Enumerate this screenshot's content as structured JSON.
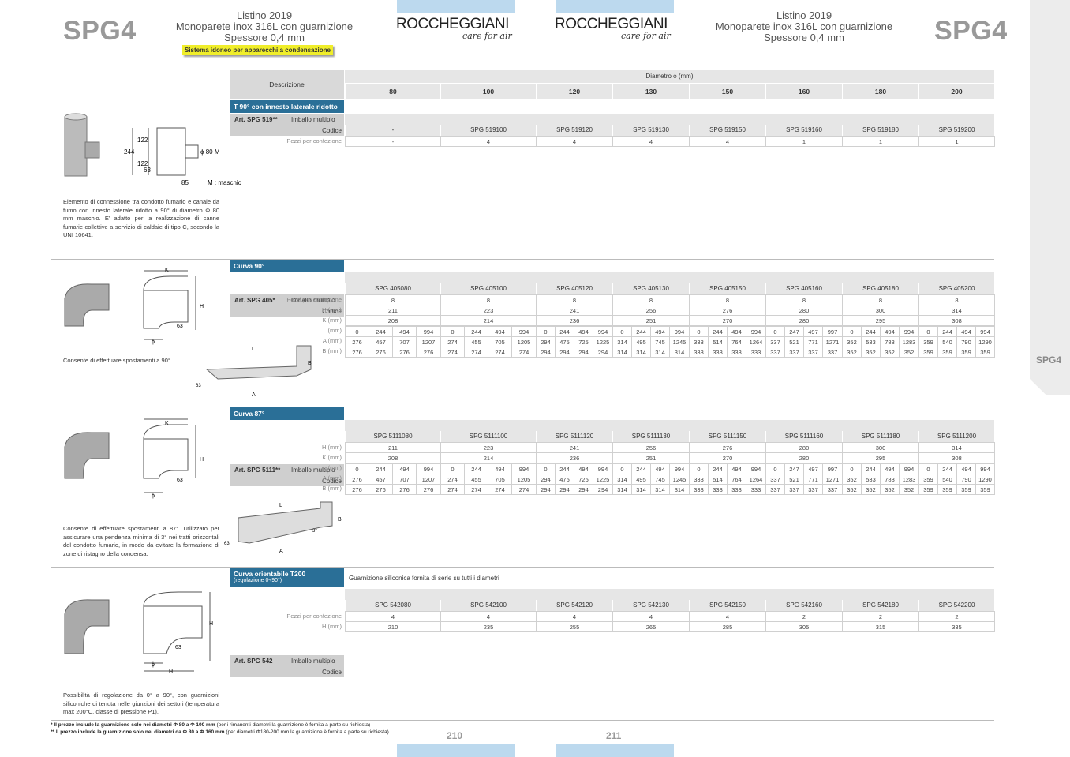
{
  "header": {
    "code_left": "SPG4",
    "code_right": "SPG4",
    "listino": "Listino 2019",
    "product": "Monoparete inox 316L con guarnizione",
    "thickness": "Spessore 0,4 mm",
    "badge": "Sistema idoneo per apparecchi a condensazione",
    "logo": "ROCCHEGGIANI",
    "logo_sub": "care for air"
  },
  "side_tab": "SPG4",
  "table_header": {
    "descrizione": "Descrizione",
    "diametro": "Diametro ϕ (mm)",
    "diameters": [
      "80",
      "100",
      "120",
      "130",
      "150",
      "160",
      "180",
      "200"
    ]
  },
  "sections": [
    {
      "title": "T 90° con innesto laterale ridotto",
      "art": "Art. SPG 519**",
      "imballo": "Imballo multiplo",
      "codice_label": "Codice",
      "codes": [
        "-",
        "SPG 519100",
        "SPG 519120",
        "SPG 519130",
        "SPG 519150",
        "SPG 519160",
        "SPG 519180",
        "SPG 519200"
      ],
      "pezzi_label": "Pezzi per confezione",
      "pezzi": [
        "-",
        "4",
        "4",
        "4",
        "4",
        "1",
        "1",
        "1"
      ],
      "description": "Elemento di connessione tra condotto fumario e canale da fumo con innesto laterale ridotto a 90° di diametro Φ 80 mm maschio. E' adatto per la realizzazione di canne fumarie collettive a servizio di caldaie di tipo C, secondo la UNI 10641.",
      "drawing": {
        "d1": "122",
        "d2": "244",
        "d3": "122",
        "d4": "63",
        "d5": "85",
        "side": "ϕ 80 M",
        "note": "M : maschio"
      }
    },
    {
      "title": "Curva 90°",
      "art": "Art. SPG 405*",
      "imballo": "Imballo multiplo",
      "codice_label": "Codice",
      "codes": [
        "SPG 405080",
        "SPG 405100",
        "SPG 405120",
        "SPG 405130",
        "SPG 405150",
        "SPG 405160",
        "SPG 405180",
        "SPG 405200"
      ],
      "pezzi_label": "Pezzi per confezione",
      "pezzi": [
        "8",
        "8",
        "8",
        "8",
        "8",
        "8",
        "8",
        "8"
      ],
      "h_label": "H (mm)",
      "h": [
        "211",
        "223",
        "241",
        "256",
        "276",
        "280",
        "300",
        "314"
      ],
      "k_label": "K (mm)",
      "k": [
        "208",
        "214",
        "236",
        "251",
        "270",
        "280",
        "295",
        "308"
      ],
      "l_label": "L (mm)",
      "l": [
        [
          "0",
          "244",
          "494",
          "994"
        ],
        [
          "0",
          "244",
          "494",
          "994"
        ],
        [
          "0",
          "244",
          "494",
          "994"
        ],
        [
          "0",
          "244",
          "494",
          "994"
        ],
        [
          "0",
          "244",
          "494",
          "994"
        ],
        [
          "0",
          "247",
          "497",
          "997"
        ],
        [
          "0",
          "244",
          "494",
          "994"
        ],
        [
          "0",
          "244",
          "494",
          "994"
        ]
      ],
      "a_label": "A (mm)",
      "a": [
        [
          "276",
          "457",
          "707",
          "1207"
        ],
        [
          "274",
          "455",
          "705",
          "1205"
        ],
        [
          "294",
          "475",
          "725",
          "1225"
        ],
        [
          "314",
          "495",
          "745",
          "1245"
        ],
        [
          "333",
          "514",
          "764",
          "1264"
        ],
        [
          "337",
          "521",
          "771",
          "1271"
        ],
        [
          "352",
          "533",
          "783",
          "1283"
        ],
        [
          "359",
          "540",
          "790",
          "1290"
        ]
      ],
      "b_label": "B (mm)",
      "b": [
        [
          "276",
          "276",
          "276",
          "276"
        ],
        [
          "274",
          "274",
          "274",
          "274"
        ],
        [
          "294",
          "294",
          "294",
          "294"
        ],
        [
          "314",
          "314",
          "314",
          "314"
        ],
        [
          "333",
          "333",
          "333",
          "333"
        ],
        [
          "337",
          "337",
          "337",
          "337"
        ],
        [
          "352",
          "352",
          "352",
          "352"
        ],
        [
          "359",
          "359",
          "359",
          "359"
        ]
      ],
      "description": "Consente di effettuare spostamenti a 90°.",
      "drawing": {
        "k": "K",
        "h": "H",
        "d": "63",
        "phi": "ϕ",
        "l": "L",
        "b": "B",
        "a": "A",
        "d2": "63"
      }
    },
    {
      "title": "Curva 87°",
      "art": "Art. SPG 5111**",
      "imballo": "Imballo multiplo",
      "codice_label": "Codice",
      "codes": [
        "SPG 5111080",
        "SPG 5111100",
        "SPG 5111120",
        "SPG 5111130",
        "SPG 5111150",
        "SPG 5111160",
        "SPG 5111180",
        "SPG 5111200"
      ],
      "h_label": "H (mm)",
      "h": [
        "211",
        "223",
        "241",
        "256",
        "276",
        "280",
        "300",
        "314"
      ],
      "k_label": "K (mm)",
      "k": [
        "208",
        "214",
        "236",
        "251",
        "270",
        "280",
        "295",
        "308"
      ],
      "l_label": "L (mm)",
      "l": [
        [
          "0",
          "244",
          "494",
          "994"
        ],
        [
          "0",
          "244",
          "494",
          "994"
        ],
        [
          "0",
          "244",
          "494",
          "994"
        ],
        [
          "0",
          "244",
          "494",
          "994"
        ],
        [
          "0",
          "244",
          "494",
          "994"
        ],
        [
          "0",
          "247",
          "497",
          "997"
        ],
        [
          "0",
          "244",
          "494",
          "994"
        ],
        [
          "0",
          "244",
          "494",
          "994"
        ]
      ],
      "a_label": "A (mm)",
      "a": [
        [
          "276",
          "457",
          "707",
          "1207"
        ],
        [
          "274",
          "455",
          "705",
          "1205"
        ],
        [
          "294",
          "475",
          "725",
          "1225"
        ],
        [
          "314",
          "495",
          "745",
          "1245"
        ],
        [
          "333",
          "514",
          "764",
          "1264"
        ],
        [
          "337",
          "521",
          "771",
          "1271"
        ],
        [
          "352",
          "533",
          "783",
          "1283"
        ],
        [
          "359",
          "540",
          "790",
          "1290"
        ]
      ],
      "b_label": "B (mm)",
      "b": [
        [
          "276",
          "276",
          "276",
          "276"
        ],
        [
          "274",
          "274",
          "274",
          "274"
        ],
        [
          "294",
          "294",
          "294",
          "294"
        ],
        [
          "314",
          "314",
          "314",
          "314"
        ],
        [
          "333",
          "333",
          "333",
          "333"
        ],
        [
          "337",
          "337",
          "337",
          "337"
        ],
        [
          "352",
          "352",
          "352",
          "352"
        ],
        [
          "359",
          "359",
          "359",
          "359"
        ]
      ],
      "description": "Consente di effettuare spostamenti a 87°. Utilizzato per assicurare una pendenza minima di 3° nei tratti orizzontali del condotto fumario, in modo da evitare la formazione di zone di ristagno della condensa.",
      "drawing": {
        "k": "K",
        "h": "H",
        "d": "63",
        "phi": "ϕ",
        "l": "L",
        "b": "B",
        "a": "A",
        "d2": "63",
        "angle": "3°"
      }
    },
    {
      "title": "Curva orientabile T200",
      "subtitle": "(regolazione 0÷90°)",
      "note": "Guarnizione siliconica fornita di serie su tutti i diametri",
      "art": "Art. SPG 542",
      "imballo": "Imballo multiplo",
      "codice_label": "Codice",
      "codes": [
        "SPG 542080",
        "SPG 542100",
        "SPG 542120",
        "SPG 542130",
        "SPG 542150",
        "SPG 542160",
        "SPG 542180",
        "SPG 542200"
      ],
      "pezzi_label": "Pezzi per confezione",
      "pezzi": [
        "4",
        "4",
        "4",
        "4",
        "4",
        "2",
        "2",
        "2"
      ],
      "h_label": "H (mm)",
      "h": [
        "210",
        "235",
        "255",
        "265",
        "285",
        "305",
        "315",
        "335"
      ],
      "description": "Possibilità di regolazione da 0° a 90°, con guarnizioni siliconiche di tenuta nelle giunzioni dei settori (temperatura max 200°C, classe di pressione P1).",
      "drawing": {
        "h": "H",
        "d": "63",
        "phi": "ϕ",
        "h2": "H"
      }
    }
  ],
  "footnotes": {
    "f1_bold": "* Il prezzo include la guarnizione solo nei diametri Φ 80 a Φ 100 mm",
    "f1_rest": "(per i rimanenti diametri la guarnizione è fornita a parte su richiesta)",
    "f2_bold": "** Il prezzo include la guarnizione solo nei diametri da Φ 80 a Φ 160 mm",
    "f2_rest": "(per diametri Φ180-200 mm la guarnizione è fornita a parte su richiesta)"
  },
  "pages": {
    "left": "210",
    "right": "211"
  }
}
